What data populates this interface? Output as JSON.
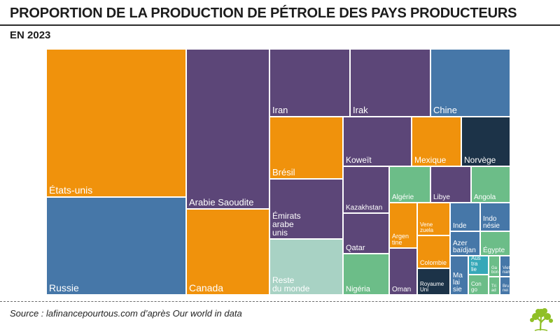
{
  "header": {
    "title": "PROPORTION DE LA PRODUCTION DE PÉTROLE DES PAYS PRODUCTEURS",
    "subtitle": "EN 2023"
  },
  "footer": {
    "source": "Source : lafinancepourtous.com d’après Our world in data"
  },
  "colors": {
    "orange": "#f0920c",
    "purple": "#5c4678",
    "blue": "#4677a8",
    "navy": "#1c3348",
    "green": "#6cbd88",
    "light_green": "#a8d2c4",
    "teal": "#36a8b8",
    "logo_green": "#8fbf26"
  },
  "chart_data": {
    "type": "treemap",
    "title": "PROPORTION DE LA PRODUCTION DE PÉTROLE DES PAYS PRODUCTEURS",
    "subtitle": "EN 2023",
    "note": "",
    "items": [
      {
        "label": "États-unis",
        "lines": [
          "États-unis"
        ],
        "color": "orange"
      },
      {
        "label": "Russie",
        "lines": [
          "Russie"
        ],
        "color": "blue"
      },
      {
        "label": "Arabie Saoudite",
        "lines": [
          "Arabie Saoudite"
        ],
        "color": "purple"
      },
      {
        "label": "Canada",
        "lines": [
          "Canada"
        ],
        "color": "orange"
      },
      {
        "label": "Iran",
        "lines": [
          "Iran"
        ],
        "color": "purple"
      },
      {
        "label": "Irak",
        "lines": [
          "Irak"
        ],
        "color": "purple"
      },
      {
        "label": "Chine",
        "lines": [
          "Chine"
        ],
        "color": "blue"
      },
      {
        "label": "Brésil",
        "lines": [
          "Brésil"
        ],
        "color": "orange"
      },
      {
        "label": "Émirats arabe unis",
        "lines": [
          "Émirats",
          "arabe",
          "unis"
        ],
        "color": "purple"
      },
      {
        "label": "Reste du monde",
        "lines": [
          "Reste",
          "du monde"
        ],
        "color": "light_green"
      },
      {
        "label": "Koweït",
        "lines": [
          "Koweït"
        ],
        "color": "purple"
      },
      {
        "label": "Mexique",
        "lines": [
          "Mexique"
        ],
        "color": "orange"
      },
      {
        "label": "Norvège",
        "lines": [
          "Norvège"
        ],
        "color": "navy"
      },
      {
        "label": "Kazakhstan",
        "lines": [
          "Kazakhstan"
        ],
        "color": "purple"
      },
      {
        "label": "Qatar",
        "lines": [
          "Qatar"
        ],
        "color": "purple"
      },
      {
        "label": "Nigéria",
        "lines": [
          "Nigéria"
        ],
        "color": "green"
      },
      {
        "label": "Algérie",
        "lines": [
          "Algérie"
        ],
        "color": "green"
      },
      {
        "label": "Libye",
        "lines": [
          "Libye"
        ],
        "color": "purple"
      },
      {
        "label": "Angola",
        "lines": [
          "Angola"
        ],
        "color": "green"
      },
      {
        "label": "Argentine",
        "lines": [
          "Argen",
          "tine"
        ],
        "color": "orange"
      },
      {
        "label": "Venezuela",
        "lines": [
          "Vene",
          "zuela"
        ],
        "color": "orange"
      },
      {
        "label": "Inde",
        "lines": [
          "Inde"
        ],
        "color": "blue"
      },
      {
        "label": "Indonésie",
        "lines": [
          "Indo",
          "nésie"
        ],
        "color": "blue"
      },
      {
        "label": "Azerbaïdjan",
        "lines": [
          "Azer",
          "baïdjan"
        ],
        "color": "blue"
      },
      {
        "label": "Égypte",
        "lines": [
          "Égypte"
        ],
        "color": "green"
      },
      {
        "label": "Colombie",
        "lines": [
          "Colombie"
        ],
        "color": "orange"
      },
      {
        "label": "Oman",
        "lines": [
          "Oman"
        ],
        "color": "purple"
      },
      {
        "label": "Royaume Uni",
        "lines": [
          "Royaume",
          "Uni"
        ],
        "color": "navy"
      },
      {
        "label": "Malaisie",
        "lines": [
          "Ma",
          "lai",
          "sie"
        ],
        "color": "blue"
      },
      {
        "label": "Australie",
        "lines": [
          "Aus",
          "tra",
          "lie"
        ],
        "color": "teal"
      },
      {
        "label": "Congo",
        "lines": [
          "Con",
          "go"
        ],
        "color": "green"
      },
      {
        "label": "Gabon",
        "lines": [
          "Ga",
          "bon"
        ],
        "color": "green"
      },
      {
        "label": "Trinidad",
        "lines": [
          "Tri",
          "ad"
        ],
        "color": "green"
      },
      {
        "label": "Vietnam",
        "lines": [
          "Viet",
          "nam"
        ],
        "color": "blue"
      },
      {
        "label": "Brunei",
        "lines": [
          "Bru",
          "nei"
        ],
        "color": "blue"
      }
    ]
  }
}
